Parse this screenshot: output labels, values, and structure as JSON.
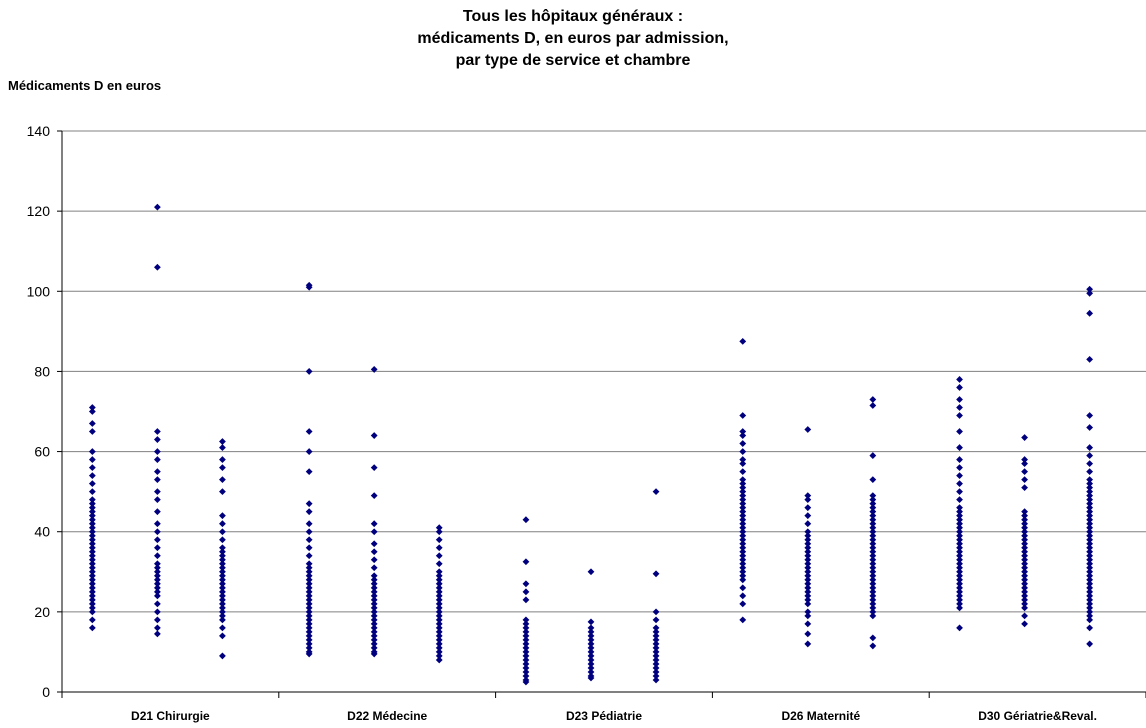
{
  "chart_data": {
    "type": "scatter",
    "title_lines": [
      "Tous les hôpitaux généraux :",
      "médicaments D, en euros par admission,",
      "par type de service et chambre"
    ],
    "ylabel": "Médicaments D en euros",
    "xlabel": "",
    "ylim": [
      0,
      140
    ],
    "yticks": [
      0,
      20,
      40,
      60,
      80,
      100,
      120,
      140
    ],
    "grid": "horizontal",
    "legend": "none",
    "marker": "diamond",
    "color": "#00007f",
    "categories": [
      "D21 Chirurgie",
      "D22 Médecine",
      "D23 Pédiatrie",
      "D26 Maternité",
      "D30 Gériatrie&Reval."
    ],
    "series": [
      {
        "category": "D21 Chirurgie",
        "columns": [
          [
            16,
            18,
            20,
            21,
            22,
            23,
            24,
            25,
            26,
            27,
            28,
            29,
            30,
            31,
            32,
            33,
            34,
            35,
            36,
            37,
            38,
            39,
            40,
            41,
            42,
            43,
            44,
            45,
            46,
            47,
            48,
            50,
            52,
            54,
            56,
            58,
            60,
            65,
            67,
            70,
            71
          ],
          [
            14.5,
            16,
            18,
            20,
            22,
            24,
            25,
            26,
            27,
            28,
            29,
            30,
            31,
            32,
            34,
            36,
            38,
            40,
            42,
            45,
            48,
            50,
            53,
            55,
            58,
            60,
            63,
            65,
            106,
            121
          ],
          [
            9,
            14,
            16,
            18,
            19,
            20,
            21,
            22,
            23,
            24,
            25,
            26,
            27,
            28,
            29,
            30,
            31,
            32,
            33,
            34,
            35,
            36,
            38,
            40,
            42,
            44,
            50,
            53,
            56,
            58,
            61,
            62.5
          ]
        ]
      },
      {
        "category": "D22 Médecine",
        "columns": [
          [
            9.5,
            10,
            11,
            12,
            13,
            14,
            15,
            16,
            17,
            18,
            19,
            20,
            21,
            22,
            23,
            24,
            25,
            26,
            27,
            28,
            29,
            30,
            31,
            32,
            34,
            36,
            38,
            40,
            42,
            45,
            47,
            55,
            60,
            65,
            80,
            101,
            101.5
          ],
          [
            9.5,
            10,
            11,
            12,
            13,
            14,
            15,
            16,
            17,
            18,
            19,
            20,
            21,
            22,
            23,
            24,
            25,
            26,
            27,
            28,
            29,
            31,
            33,
            35,
            37,
            40,
            42,
            49,
            56,
            64,
            80.5
          ],
          [
            8,
            9,
            10,
            11,
            12,
            13,
            14,
            15,
            16,
            17,
            18,
            19,
            20,
            21,
            22,
            23,
            24,
            25,
            26,
            27,
            28,
            29,
            30,
            32,
            34,
            36,
            38,
            40,
            41
          ]
        ]
      },
      {
        "category": "D23 Pédiatrie",
        "columns": [
          [
            2.5,
            3,
            4,
            5,
            6,
            7,
            8,
            9,
            10,
            11,
            12,
            13,
            14,
            15,
            16,
            17,
            18,
            23,
            25,
            27,
            32.5,
            43
          ],
          [
            3.5,
            4,
            5,
            6,
            7,
            8,
            9,
            10,
            11,
            12,
            13,
            14,
            15,
            16,
            17.5,
            30
          ],
          [
            3,
            4,
            5,
            6,
            7,
            8,
            9,
            10,
            11,
            12,
            13,
            14,
            15,
            16,
            18,
            20,
            29.5,
            50
          ]
        ]
      },
      {
        "category": "D26 Maternité",
        "columns": [
          [
            18,
            22,
            24,
            26,
            28,
            29,
            30,
            31,
            32,
            33,
            34,
            35,
            36,
            37,
            38,
            39,
            40,
            41,
            42,
            43,
            44,
            45,
            46,
            47,
            48,
            49,
            50,
            51,
            52,
            53,
            55,
            57,
            58,
            60,
            62,
            64,
            65,
            69,
            87.5
          ],
          [
            12,
            14.5,
            17,
            19,
            20,
            22,
            23,
            24,
            25,
            26,
            27,
            28,
            29,
            30,
            31,
            32,
            33,
            34,
            35,
            36,
            37,
            38,
            39,
            40,
            42,
            44,
            46,
            48,
            49,
            65.5
          ],
          [
            11.5,
            13.5,
            19,
            20,
            21,
            22,
            23,
            24,
            25,
            26,
            27,
            28,
            29,
            30,
            31,
            32,
            33,
            34,
            35,
            36,
            37,
            38,
            39,
            40,
            41,
            42,
            43,
            44,
            45,
            46,
            47,
            48,
            49,
            53,
            59,
            71.5,
            73
          ]
        ]
      },
      {
        "category": "D30 Gériatrie&Reval.",
        "columns": [
          [
            16,
            21,
            22,
            23,
            24,
            25,
            26,
            27,
            28,
            29,
            30,
            31,
            32,
            33,
            34,
            35,
            36,
            37,
            38,
            39,
            40,
            41,
            42,
            43,
            44,
            45,
            46,
            48,
            50,
            52,
            54,
            56,
            58,
            61,
            65,
            69,
            71,
            73,
            76,
            78
          ],
          [
            17,
            19,
            21,
            22,
            23,
            24,
            25,
            26,
            27,
            28,
            29,
            30,
            31,
            32,
            33,
            34,
            35,
            36,
            37,
            38,
            39,
            40,
            41,
            42,
            43,
            44,
            45,
            51,
            53,
            55,
            57,
            58,
            63.5
          ],
          [
            12,
            16,
            18,
            19,
            20,
            21,
            22,
            23,
            24,
            25,
            26,
            27,
            28,
            29,
            30,
            31,
            32,
            33,
            34,
            35,
            36,
            37,
            38,
            39,
            40,
            41,
            42,
            43,
            44,
            45,
            46,
            47,
            48,
            49,
            50,
            51,
            52,
            53,
            55,
            57,
            59,
            61,
            66,
            69,
            83,
            94.5,
            99.5,
            100.5
          ]
        ]
      }
    ]
  }
}
